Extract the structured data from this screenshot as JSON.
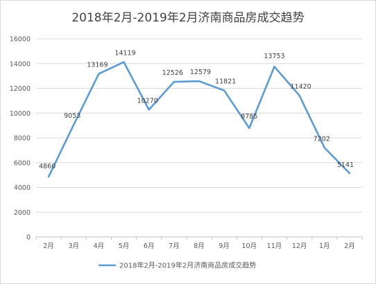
{
  "chart_data": {
    "type": "line",
    "title": "2018年2月-2019年2月济南商品房成交趋势",
    "categories": [
      "2月",
      "3月",
      "4月",
      "5月",
      "6月",
      "7月",
      "8月",
      "9月",
      "10月",
      "11月",
      "12月",
      "1月",
      "2月"
    ],
    "series": [
      {
        "name": "2018年2月-2019年2月济南商品房成交趋势",
        "values": [
          4860,
          9053,
          13169,
          14119,
          10270,
          12526,
          12579,
          11821,
          8785,
          13753,
          11420,
          7202,
          5141
        ],
        "color": "#5b9bd5"
      }
    ],
    "ylim": [
      0,
      16000
    ],
    "yticks": [
      0,
      2000,
      4000,
      6000,
      8000,
      10000,
      12000,
      14000,
      16000
    ],
    "xlabel": "",
    "ylabel": "",
    "grid": true,
    "legend": "bottom",
    "colors": {
      "grid": "#d9d9d9",
      "axis": "#bfbfbf"
    }
  }
}
